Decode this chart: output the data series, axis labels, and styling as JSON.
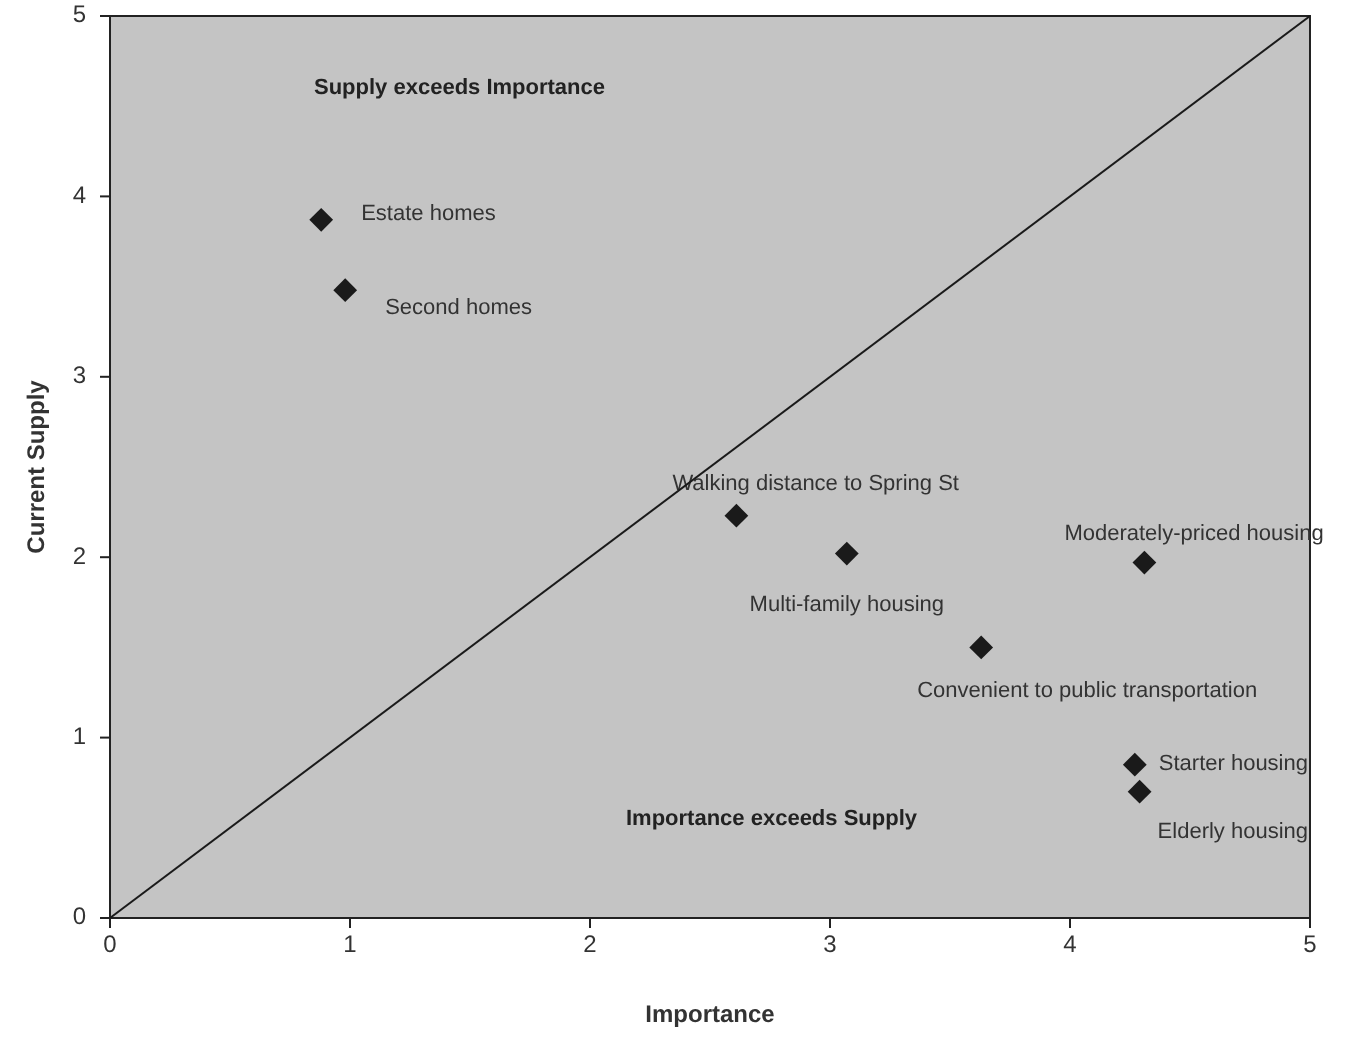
{
  "chart_data": {
    "type": "scatter",
    "xlabel": "Importance",
    "ylabel": "Current Supply",
    "xlim": [
      0,
      5
    ],
    "ylim": [
      0,
      5
    ],
    "xticks": [
      0,
      1,
      2,
      3,
      4,
      5
    ],
    "yticks": [
      0,
      1,
      2,
      3,
      4,
      5
    ],
    "marker": "diamond",
    "grid": false,
    "annotations": [
      "Supply exceeds Importance",
      "Importance exceeds Supply"
    ],
    "series": [
      {
        "name": "Estate homes",
        "color": "#1a1a1a",
        "x": [
          0.88
        ],
        "values": [
          3.87
        ]
      },
      {
        "name": "Second homes",
        "color": "#1a1a1a",
        "x": [
          0.98
        ],
        "values": [
          3.48
        ]
      },
      {
        "name": "Walking distance to Spring St",
        "color": "#1a1a1a",
        "x": [
          2.61
        ],
        "values": [
          2.23
        ]
      },
      {
        "name": "Multi-family housing",
        "color": "#1a1a1a",
        "x": [
          3.07
        ],
        "values": [
          2.02
        ]
      },
      {
        "name": "Moderately-priced housing",
        "color": "#1a1a1a",
        "x": [
          4.31
        ],
        "values": [
          1.97
        ]
      },
      {
        "name": "Convenient to public transportation",
        "color": "#1a1a1a",
        "x": [
          3.63
        ],
        "values": [
          1.5
        ]
      },
      {
        "name": "Starter housing",
        "color": "#1a1a1a",
        "x": [
          4.27
        ],
        "values": [
          0.85
        ]
      },
      {
        "name": "Elderly housing",
        "color": "#1a1a1a",
        "x": [
          4.29
        ],
        "values": [
          0.7
        ]
      },
      {
        "type": "line",
        "marker": "none",
        "color": "#1a1a1a",
        "x": [
          0,
          5
        ],
        "values": [
          0,
          5
        ]
      }
    ]
  }
}
